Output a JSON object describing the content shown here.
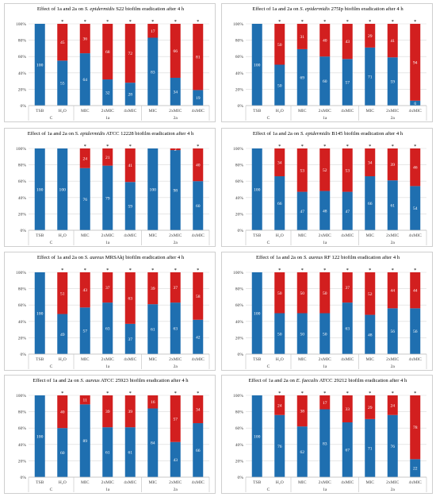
{
  "colors": {
    "blue": "#1f6fb0",
    "red": "#d21f1f",
    "grid": "#d9d9d9",
    "text": "#404040"
  },
  "chart_data": [
    {
      "type": "bar",
      "title_pre": "Effect of 1a and 2a on ",
      "title_it": "S. epidermidis",
      "title_post": " S22 biofilm eradication after 4 h",
      "categories": [
        "TSB",
        "H₂O",
        "MIC",
        "2xMIC",
        "4xMIC",
        "MIC",
        "2xMIC",
        "4xMIC"
      ],
      "groups": [
        "C",
        "1a",
        "2a"
      ],
      "yticks": [
        "0%",
        "20%",
        "40%",
        "60%",
        "80%",
        "100%"
      ],
      "ylim": [
        0,
        100
      ],
      "series": [
        {
          "values": [
            100,
            55,
            64,
            32,
            28,
            83,
            34,
            19
          ],
          "labels": [
            "100",
            "55",
            "64",
            "32",
            "28",
            "83",
            "34",
            "19"
          ]
        },
        {
          "values": [
            0,
            45,
            36,
            68,
            72,
            17,
            66,
            81
          ],
          "labels": [
            "",
            "45",
            "36",
            "68",
            "72",
            "17",
            "66",
            "81"
          ]
        }
      ],
      "stars": [
        "",
        "*",
        "*",
        "*",
        "*",
        "*",
        "*",
        "*"
      ]
    },
    {
      "type": "bar",
      "title_pre": "Effect of 1a and 2a on ",
      "title_it": "S. epidermidis",
      "title_post": " 275Ip biofilm eradication after 4 h",
      "categories": [
        "TSB",
        "H₂O",
        "MIC",
        "2xMIC",
        "4xMIC",
        "MIC",
        "2xMIC",
        "4xMIC"
      ],
      "groups": [
        "C",
        "1a",
        "2a"
      ],
      "yticks": [
        "0%",
        "20%",
        "40%",
        "60%",
        "80%",
        "100%"
      ],
      "ylim": [
        0,
        100
      ],
      "series": [
        {
          "values": [
            100,
            50,
            69,
            60,
            57,
            71,
            59,
            6
          ],
          "labels": [
            "100",
            "50",
            "69",
            "60",
            "57",
            "71",
            "59",
            "6"
          ]
        },
        {
          "values": [
            0,
            50,
            31,
            40,
            43,
            29,
            41,
            94
          ],
          "labels": [
            "",
            "50",
            "31",
            "40",
            "43",
            "29",
            "41",
            "94"
          ]
        }
      ],
      "stars": [
        "",
        "*",
        "*",
        "*",
        "*",
        "*",
        "*",
        "*"
      ]
    },
    {
      "type": "bar",
      "title_pre": "Effect of 1a and 2a on ",
      "title_it": "S. epidermidis",
      "title_post": " ATCC 12228 biofilm eradication after 4 h",
      "categories": [
        "TSB",
        "H₂O",
        "MIC",
        "2xMIC",
        "4xMIC",
        "MIC",
        "2xMIC",
        "4xMIC"
      ],
      "groups": [
        "C",
        "1a",
        "2a"
      ],
      "yticks": [
        "0%",
        "20%",
        "40%",
        "60%",
        "80%",
        "100%"
      ],
      "ylim": [
        0,
        100
      ],
      "series": [
        {
          "values": [
            100,
            100,
            76,
            79,
            59,
            100,
            98,
            60
          ],
          "labels": [
            "100",
            "100",
            "76",
            "79",
            "59",
            "100",
            "98",
            "60"
          ]
        },
        {
          "values": [
            0,
            0,
            24,
            21,
            41,
            0,
            2,
            40
          ],
          "labels": [
            "",
            "",
            "24",
            "21",
            "41",
            "",
            "2",
            "40"
          ]
        }
      ],
      "stars": [
        "",
        "",
        "*",
        "*",
        "*",
        "",
        "",
        "*"
      ]
    },
    {
      "type": "bar",
      "title_pre": "Effect of 1a and 2a on ",
      "title_it": "S. epidermidis",
      "title_post": " B145 biofilm eradication after 4 h",
      "categories": [
        "TSB",
        "H₂O",
        "MIC",
        "2xMIC",
        "4xMIC",
        "MIC",
        "2xMIC",
        "4xMIC"
      ],
      "groups": [
        "C",
        "1a",
        "2a"
      ],
      "yticks": [
        "0%",
        "20%",
        "40%",
        "60%",
        "80%",
        "100%"
      ],
      "ylim": [
        0,
        100
      ],
      "series": [
        {
          "values": [
            100,
            66,
            47,
            48,
            47,
            66,
            61,
            54
          ],
          "labels": [
            "100",
            "66",
            "47",
            "48",
            "47",
            "66",
            "61",
            "54"
          ]
        },
        {
          "values": [
            0,
            34,
            53,
            52,
            53,
            34,
            39,
            46
          ],
          "labels": [
            "",
            "34",
            "53",
            "52",
            "53",
            "34",
            "39",
            "46"
          ]
        }
      ],
      "stars": [
        "",
        "*",
        "*",
        "*",
        "*",
        "*",
        "*",
        "*"
      ]
    },
    {
      "type": "bar",
      "title_pre": "Effect of 1a and 2a on ",
      "title_it": "S. aureus",
      "title_post": " MRSAkj biofilm eradication after 4 h",
      "categories": [
        "TSB",
        "H₂O",
        "MIC",
        "2xMIC",
        "4xMIC",
        "MIC",
        "2xMIC",
        "4xMIC"
      ],
      "groups": [
        "C",
        "1a",
        "2a"
      ],
      "yticks": [
        "0%",
        "20%",
        "40%",
        "60%",
        "80%",
        "100%"
      ],
      "ylim": [
        0,
        100
      ],
      "series": [
        {
          "values": [
            100,
            49,
            57,
            63,
            37,
            61,
            63,
            42
          ],
          "labels": [
            "100",
            "49",
            "57",
            "63",
            "37",
            "61",
            "63",
            "42"
          ]
        },
        {
          "values": [
            0,
            51,
            43,
            37,
            63,
            39,
            37,
            58
          ],
          "labels": [
            "",
            "51",
            "43",
            "37",
            "63",
            "39",
            "37",
            "58"
          ]
        }
      ],
      "stars": [
        "",
        "*",
        "*",
        "*",
        "*",
        "*",
        "*",
        "*"
      ]
    },
    {
      "type": "bar",
      "title_pre": "Effect of 1a and 2a on ",
      "title_it": "S. aureus",
      "title_post": " RF 122 biofilm eradication after 4 h",
      "categories": [
        "TSB",
        "H₂O",
        "MIC",
        "2xMIC",
        "4xMIC",
        "MIC",
        "2xMIC",
        "4xMIC"
      ],
      "groups": [
        "C",
        "1a",
        "2a"
      ],
      "yticks": [
        "0%",
        "20%",
        "40%",
        "60%",
        "80%",
        "100%"
      ],
      "ylim": [
        0,
        100
      ],
      "series": [
        {
          "values": [
            100,
            50,
            50,
            50,
            63,
            48,
            56,
            56
          ],
          "labels": [
            "100",
            "50",
            "50",
            "50",
            "63",
            "48",
            "56",
            "56"
          ]
        },
        {
          "values": [
            0,
            50,
            50,
            50,
            37,
            52,
            44,
            44
          ],
          "labels": [
            "",
            "50",
            "50",
            "50",
            "37",
            "52",
            "44",
            "44"
          ]
        }
      ],
      "stars": [
        "",
        "*",
        "*",
        "*",
        "*",
        "*",
        "*",
        "*"
      ]
    },
    {
      "type": "bar",
      "title_pre": "Effect of 1a and 2a on ",
      "title_it": "S. aureus",
      "title_post": " ATCC 25923 biofilm eradication after 4 h",
      "categories": [
        "TSB",
        "H₂O",
        "MIC",
        "2xMIC",
        "4xMIC",
        "MIC",
        "2xMIC",
        "4xMIC"
      ],
      "groups": [
        "C",
        "1a",
        "2a"
      ],
      "yticks": [
        "0%",
        "20%",
        "40%",
        "60%",
        "80%",
        "100%"
      ],
      "ylim": [
        0,
        100
      ],
      "series": [
        {
          "values": [
            100,
            60,
            89,
            61,
            61,
            84,
            43,
            66
          ],
          "labels": [
            "100",
            "60",
            "89",
            "61",
            "61",
            "84",
            "43",
            "66"
          ]
        },
        {
          "values": [
            0,
            40,
            11,
            39,
            39,
            16,
            57,
            34
          ],
          "labels": [
            "",
            "40",
            "11",
            "39",
            "39",
            "16",
            "57",
            "34"
          ]
        }
      ],
      "stars": [
        "",
        "*",
        "",
        "*",
        "*",
        "",
        "*",
        "*"
      ]
    },
    {
      "type": "bar",
      "title_pre": "Effect of 1a and 2a on ",
      "title_it": "E. faecalis",
      "title_post": " ATCC 29212 biofilm eradication after 4 h",
      "categories": [
        "TSB",
        "H₂O",
        "MIC",
        "2xMIC",
        "4xMIC",
        "MIC",
        "2xMIC",
        "4xMIC"
      ],
      "groups": [
        "C",
        "1a",
        "2a"
      ],
      "yticks": [
        "0%",
        "20%",
        "40%",
        "60%",
        "80%",
        "100%"
      ],
      "ylim": [
        0,
        100
      ],
      "series": [
        {
          "values": [
            100,
            76,
            62,
            83,
            67,
            71,
            76,
            22
          ],
          "labels": [
            "100",
            "76",
            "62",
            "83",
            "67",
            "71",
            "76",
            "22"
          ]
        },
        {
          "values": [
            0,
            24,
            38,
            17,
            33,
            29,
            24,
            78
          ],
          "labels": [
            "",
            "24",
            "38",
            "17",
            "33",
            "29",
            "24",
            "78"
          ]
        }
      ],
      "stars": [
        "",
        "*",
        "*",
        "*",
        "*",
        "*",
        "*",
        "*"
      ]
    }
  ]
}
